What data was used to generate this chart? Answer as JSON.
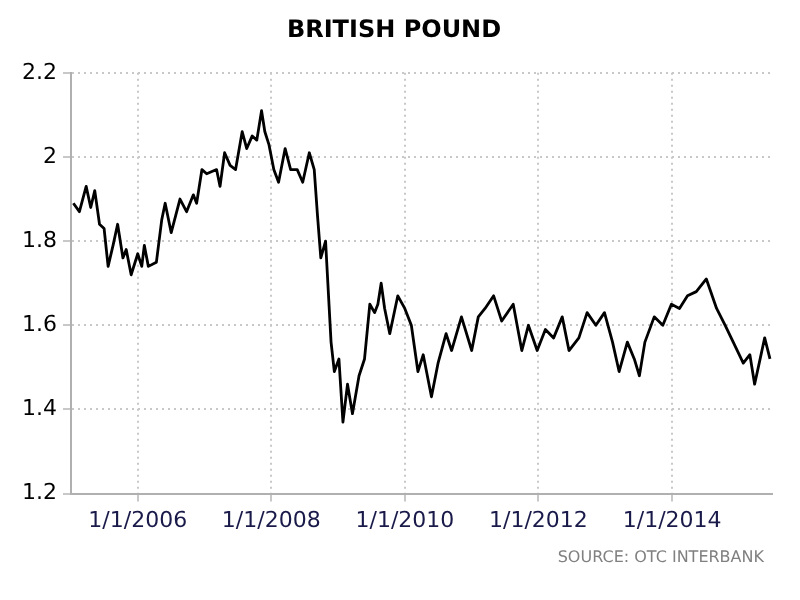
{
  "chart_data": {
    "type": "line",
    "title": "BRITISH POUND",
    "annotations": [
      "SOURCE: OTC INTERBANK"
    ],
    "x": [
      "2005-01-14",
      "2005-02-16",
      "2005-03-25",
      "2005-04-19",
      "2005-05-11",
      "2005-06-06",
      "2005-07-01",
      "2005-07-23",
      "2005-08-19",
      "2005-09-13",
      "2005-10-12",
      "2005-10-30",
      "2005-11-26",
      "2006-01-01",
      "2006-01-23",
      "2006-02-06",
      "2006-02-28",
      "2006-04-13",
      "2006-05-12",
      "2006-05-31",
      "2006-07-03",
      "2006-08-20",
      "2006-09-25",
      "2006-11-01",
      "2006-11-19",
      "2006-12-18",
      "2007-01-13",
      "2007-03-08",
      "2007-03-27",
      "2007-04-21",
      "2007-05-21",
      "2007-06-20",
      "2007-07-26",
      "2007-08-20",
      "2007-09-19",
      "2007-10-14",
      "2007-11-09",
      "2007-11-27",
      "2007-12-19",
      "2008-01-15",
      "2008-02-10",
      "2008-03-17",
      "2008-04-16",
      "2008-05-22",
      "2008-06-21",
      "2008-07-27",
      "2008-08-23",
      "2008-09-10",
      "2008-09-28",
      "2008-10-24",
      "2008-11-23",
      "2008-12-11",
      "2009-01-05",
      "2009-01-27",
      "2009-02-21",
      "2009-03-20",
      "2009-04-25",
      "2009-05-25",
      "2009-06-23",
      "2009-07-19",
      "2009-08-06",
      "2009-08-24",
      "2009-09-12",
      "2009-10-10",
      "2009-11-23",
      "2009-12-31",
      "2010-02-05",
      "2010-03-13",
      "2010-04-11",
      "2010-05-26",
      "2010-07-01",
      "2010-08-14",
      "2010-09-13",
      "2010-11-06",
      "2011-01-01",
      "2011-02-06",
      "2011-03-15",
      "2011-05-01",
      "2011-06-14",
      "2011-08-16",
      "2011-10-02",
      "2011-11-07",
      "2011-12-25",
      "2012-02-08",
      "2012-03-24",
      "2012-05-10",
      "2012-06-16",
      "2012-08-09",
      "2012-09-23",
      "2012-11-10",
      "2012-12-27",
      "2013-02-09",
      "2013-03-17",
      "2013-05-01",
      "2013-06-08",
      "2013-07-06",
      "2013-08-05",
      "2013-09-25",
      "2013-11-11",
      "2013-12-28",
      "2014-02-10",
      "2014-03-26",
      "2014-05-13",
      "2014-07-07",
      "2014-09-01",
      "2014-10-18",
      "2014-12-01",
      "2015-01-25",
      "2015-03-02",
      "2015-03-28",
      "2015-05-22",
      "2015-06-20"
    ],
    "series": [
      {
        "color": "#000000",
        "values": [
          1.89,
          1.87,
          1.93,
          1.88,
          1.92,
          1.84,
          1.83,
          1.74,
          1.79,
          1.84,
          1.76,
          1.78,
          1.72,
          1.77,
          1.74,
          1.79,
          1.74,
          1.75,
          1.85,
          1.89,
          1.82,
          1.9,
          1.87,
          1.91,
          1.89,
          1.97,
          1.96,
          1.97,
          1.93,
          2.01,
          1.98,
          1.97,
          2.06,
          2.02,
          2.05,
          2.04,
          2.11,
          2.06,
          2.03,
          1.97,
          1.94,
          2.02,
          1.97,
          1.97,
          1.94,
          2.01,
          1.97,
          1.86,
          1.76,
          1.8,
          1.56,
          1.49,
          1.52,
          1.37,
          1.46,
          1.39,
          1.48,
          1.52,
          1.65,
          1.63,
          1.65,
          1.7,
          1.64,
          1.58,
          1.67,
          1.64,
          1.6,
          1.49,
          1.53,
          1.43,
          1.51,
          1.58,
          1.54,
          1.62,
          1.54,
          1.62,
          1.64,
          1.67,
          1.61,
          1.65,
          1.54,
          1.6,
          1.54,
          1.59,
          1.57,
          1.62,
          1.54,
          1.57,
          1.63,
          1.6,
          1.63,
          1.56,
          1.49,
          1.56,
          1.52,
          1.48,
          1.56,
          1.62,
          1.6,
          1.65,
          1.64,
          1.67,
          1.68,
          1.71,
          1.64,
          1.6,
          1.56,
          1.51,
          1.53,
          1.46,
          1.57,
          1.52
        ]
      }
    ],
    "xlim": [
      "2005-01-01",
      "2015-07-01"
    ],
    "xticks": [
      {
        "value": "2006-01-01",
        "label": "1/1/2006"
      },
      {
        "value": "2008-01-01",
        "label": "1/1/2008"
      },
      {
        "value": "2010-01-01",
        "label": "1/1/2010"
      },
      {
        "value": "2012-01-01",
        "label": "1/1/2012"
      },
      {
        "value": "2014-01-01",
        "label": "1/1/2014"
      }
    ],
    "ylim": [
      1.2,
      2.2
    ],
    "yticks": [
      1.2,
      1.4,
      1.6,
      1.8,
      2,
      2.2
    ],
    "grid": true,
    "legend": false
  }
}
